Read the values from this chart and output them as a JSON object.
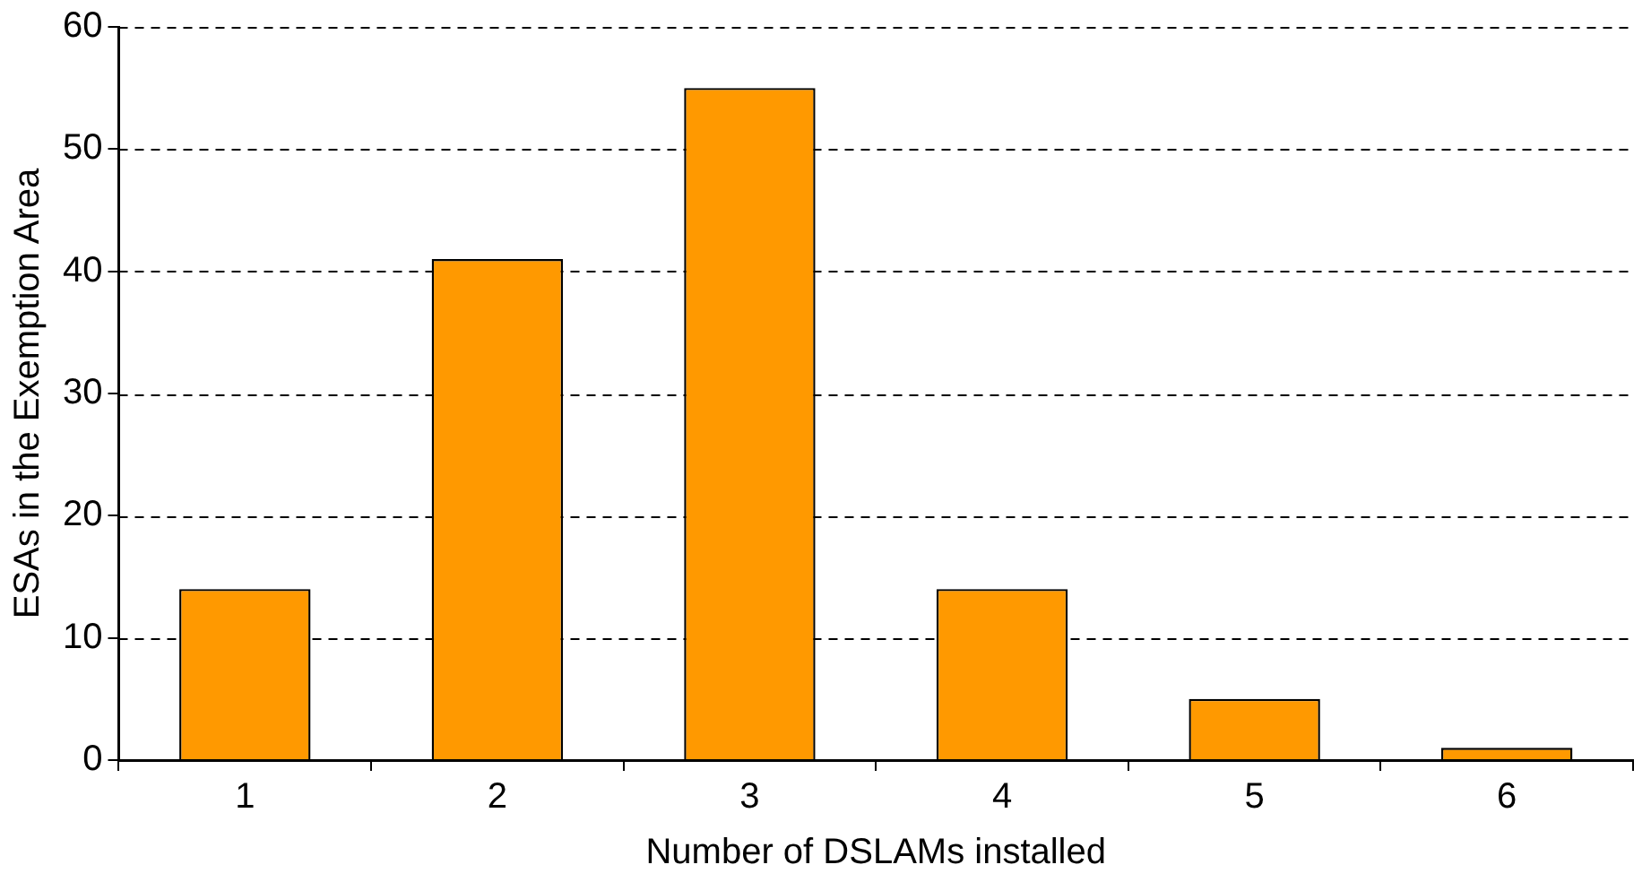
{
  "chart_data": {
    "type": "bar",
    "xlabel": "Number of DSLAMs installed",
    "ylabel": "ESAs in the Exemption Area",
    "categories": [
      "1",
      "2",
      "3",
      "4",
      "5",
      "6"
    ],
    "values": [
      14,
      41,
      55,
      14,
      5,
      1
    ],
    "color": "#ff9900",
    "ylim": [
      0,
      60
    ],
    "yticks": [
      0,
      10,
      20,
      30,
      40,
      50,
      60
    ],
    "grid": "y"
  }
}
